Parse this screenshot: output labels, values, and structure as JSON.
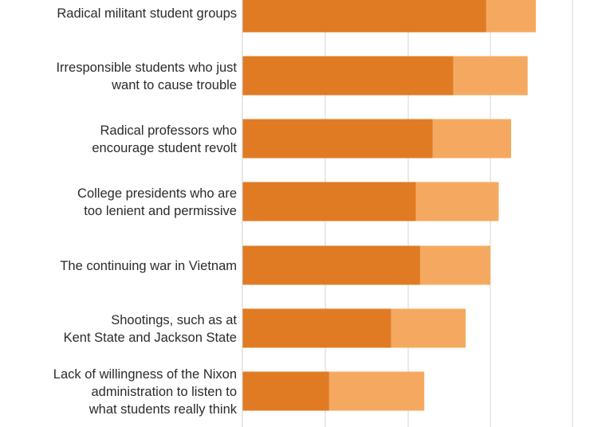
{
  "chart_data": {
    "type": "bar",
    "orientation": "horizontal",
    "stacked": true,
    "categories": [
      [
        "Radical militant student groups"
      ],
      [
        "Irresponsible students who just",
        "want to cause trouble"
      ],
      [
        "Radical professors who",
        "encourage student revolt"
      ],
      [
        "College presidents who are",
        "too lenient and permissive"
      ],
      [
        "The continuing war in Vietnam"
      ],
      [
        "Shootings, such as at",
        "Kent State and Jackson State"
      ],
      [
        "Lack of willingness of the Nixon",
        "administration to listen to",
        "what students really think"
      ]
    ],
    "series": [
      {
        "values": [
          59,
          51,
          46,
          42,
          43,
          36,
          21
        ]
      },
      {
        "values": [
          12,
          18,
          19,
          20,
          17,
          18,
          23
        ]
      }
    ],
    "xlim": [
      0,
      80
    ],
    "grid": true,
    "colors": [
      "#e07b24",
      "#f5a960"
    ]
  }
}
